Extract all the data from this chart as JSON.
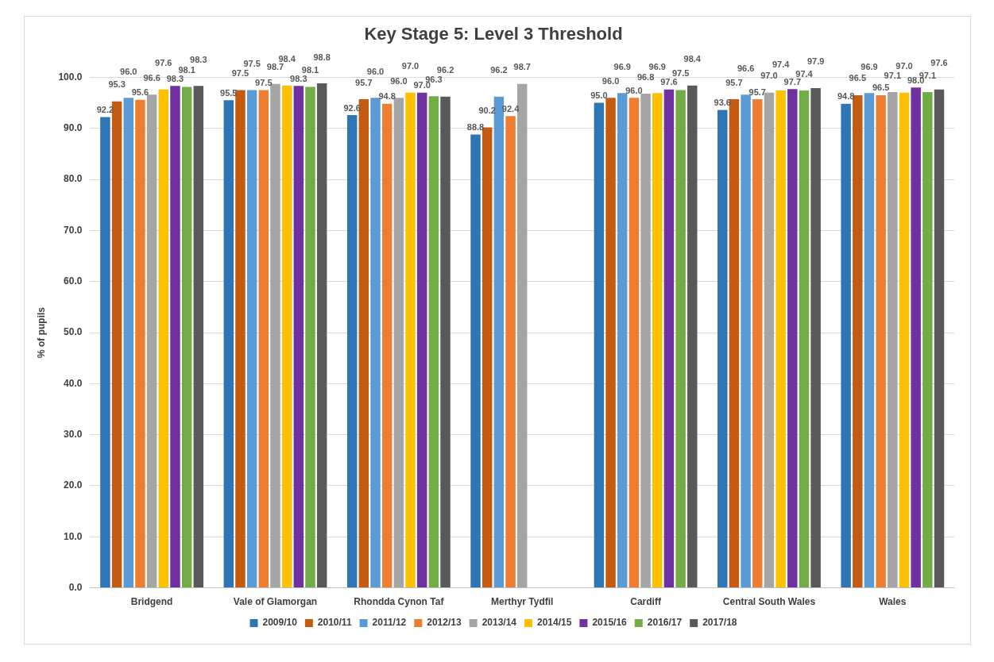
{
  "chart_data": {
    "type": "bar",
    "title": "Key Stage 5: Level 3 Threshold",
    "ylabel": "% of pupils",
    "categories": [
      "Bridgend",
      "Vale of Glamorgan",
      "Rhondda Cynon Taf",
      "Merthyr Tydfil",
      "Cardiff",
      "Central South Wales",
      "Wales"
    ],
    "series": [
      {
        "name": "2009/10",
        "color": "#2e75b6",
        "values": [
          92.2,
          95.5,
          92.6,
          88.8,
          95.0,
          93.6,
          94.8
        ],
        "value_labels": [
          "92.2",
          "95.5",
          "92.6",
          "88.8",
          "95.0",
          "93.6",
          "94.8"
        ]
      },
      {
        "name": "2010/11",
        "color": "#c55a11",
        "values": [
          95.3,
          97.5,
          95.7,
          90.2,
          96.0,
          95.7,
          96.5
        ],
        "value_labels": [
          "95.3",
          "97.5",
          "95.7",
          "90.2",
          "96.0",
          "95.7",
          "96.5"
        ]
      },
      {
        "name": "2011/12",
        "color": "#5b9bd5",
        "values": [
          96.0,
          97.5,
          96.0,
          96.2,
          96.9,
          96.6,
          96.9
        ],
        "value_labels": [
          "96.0",
          "97.5",
          "96.0",
          "96.2",
          "96.9",
          "96.6",
          "96.9"
        ]
      },
      {
        "name": "2012/13",
        "color": "#ed7d31",
        "values": [
          95.6,
          97.5,
          94.8,
          92.4,
          96.0,
          95.7,
          96.5
        ],
        "value_labels": [
          "95.6",
          "97.5",
          "94.8",
          "92.4",
          "96.0",
          "95.7",
          "96.5"
        ]
      },
      {
        "name": "2013/14",
        "color": "#a5a5a5",
        "values": [
          96.6,
          98.7,
          96.0,
          98.7,
          96.8,
          97.0,
          97.1
        ],
        "value_labels": [
          "96.6",
          "98.7",
          "96.0",
          "98.7",
          "96.8",
          "97.0",
          "97.1"
        ]
      },
      {
        "name": "2014/15",
        "color": "#ffc000",
        "values": [
          97.6,
          98.4,
          97.0,
          null,
          96.9,
          97.4,
          97.0
        ],
        "value_labels": [
          "97.6",
          "98.4",
          "97.0",
          null,
          "96.9",
          "97.4",
          "97.0"
        ]
      },
      {
        "name": "2015/16",
        "color": "#7030a0",
        "values": [
          98.3,
          98.3,
          97.0,
          null,
          97.6,
          97.7,
          98.0
        ],
        "value_labels": [
          "98.3",
          "98.3",
          "97.0",
          null,
          "97.6",
          "97.7",
          "98.0"
        ]
      },
      {
        "name": "2016/17",
        "color": "#70ad47",
        "values": [
          98.1,
          98.1,
          96.3,
          null,
          97.5,
          97.4,
          97.1
        ],
        "value_labels": [
          "98.1",
          "98.1",
          "96.3",
          null,
          "97.5",
          "97.4",
          "97.1"
        ]
      },
      {
        "name": "2017/18",
        "color": "#595959",
        "values": [
          98.3,
          98.8,
          96.2,
          null,
          98.4,
          97.9,
          97.6
        ],
        "value_labels": [
          "98.3",
          "98.8",
          "96.2",
          null,
          "98.4",
          "97.9",
          "97.6"
        ]
      }
    ],
    "ylim": [
      0,
      100
    ],
    "yticks": [
      {
        "value": 0,
        "label": "0.0"
      },
      {
        "value": 10,
        "label": "10.0"
      },
      {
        "value": 20,
        "label": "20.0"
      },
      {
        "value": 30,
        "label": "30.0"
      },
      {
        "value": 40,
        "label": "40.0"
      },
      {
        "value": 50,
        "label": "50.0"
      },
      {
        "value": 60,
        "label": "60.0"
      },
      {
        "value": 70,
        "label": "70.0"
      },
      {
        "value": 80,
        "label": "80.0"
      },
      {
        "value": 90,
        "label": "90.0"
      },
      {
        "value": 100,
        "label": "100.0"
      }
    ],
    "grid": "y",
    "legend": "bottom"
  }
}
